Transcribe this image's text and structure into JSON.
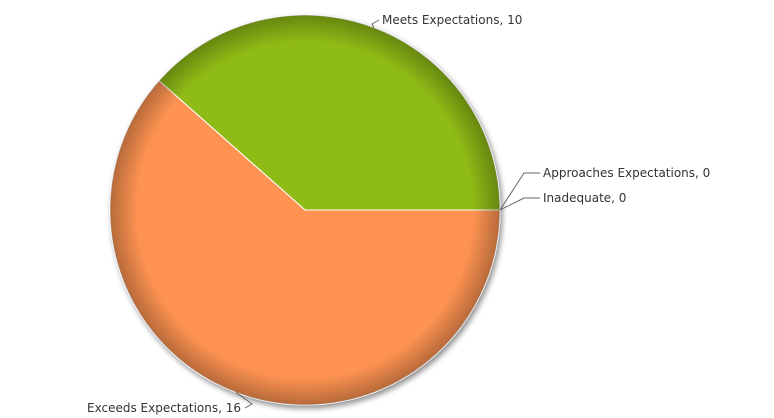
{
  "chart_data": {
    "type": "pie",
    "title": "",
    "start_angle_deg": 0,
    "direction": "counterclockwise",
    "slices": [
      {
        "label": "Meets Expectations",
        "value": 10,
        "color": "#8fbb14",
        "display": "Meets Expectations, 10"
      },
      {
        "label": "Exceeds Expectations",
        "value": 16,
        "color": "#fe9351",
        "display": "Exceeds Expectations, 16"
      },
      {
        "label": "Approaches Expectations",
        "value": 0,
        "color": "#cccccc",
        "display": "Approaches Expectations, 0"
      },
      {
        "label": "Inadequate",
        "value": 0,
        "color": "#999999",
        "display": "Inadequate, 0"
      }
    ]
  }
}
